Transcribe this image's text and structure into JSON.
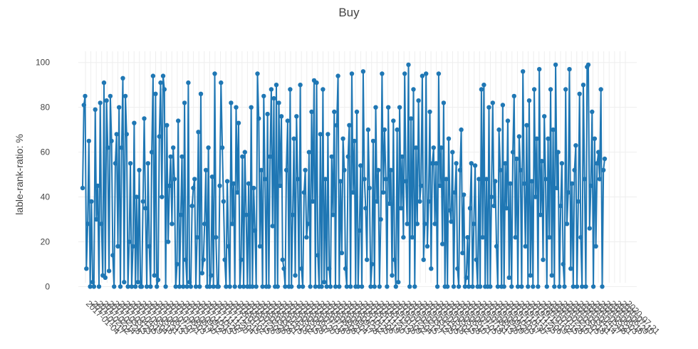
{
  "chart_data": {
    "type": "line",
    "title": "Buy",
    "xlabel": "",
    "ylabel": "lable-rank-ratio: %",
    "ylim": [
      -4,
      105
    ],
    "y_ticks": [
      0,
      20,
      40,
      60,
      80,
      100
    ],
    "grid": true,
    "legend": "none",
    "color": "#1f77b4",
    "x_tick_labels": [
      "2017-01-04",
      "2017-01-17",
      "2017-02-02",
      "2017-02-14",
      "2017-02-28",
      "2017-03-13",
      "2017-03-23",
      "2017-04-05",
      "2017-04-19",
      "2017-05-04",
      "2017-05-16",
      "2017-05-31",
      "2017-06-13",
      "2017-06-23",
      "2017-07-07",
      "2017-07-21",
      "2017-08-03",
      "2017-08-17",
      "2017-08-30",
      "2017-09-12",
      "2017-09-26",
      "2017-10-13",
      "2017-10-25",
      "2017-11-07",
      "2017-11-20",
      "2017-12-04",
      "2017-12-15",
      "2018-01-02",
      "2018-01-15",
      "2018-01-26",
      "2018-02-09",
      "2018-02-26",
      "2018-03-08",
      "2018-03-21",
      "2018-04-05",
      "2018-04-18",
      "2018-05-02",
      "2018-05-15",
      "2018-05-28",
      "2018-06-07",
      "2018-06-20",
      "2018-07-03",
      "2018-07-16",
      "2018-07-26",
      "2018-08-08",
      "2018-08-21",
      "2018-09-04",
      "2018-09-17",
      "2018-09-28",
      "2018-10-12",
      "2018-10-25",
      "2018-11-06",
      "2018-11-19",
      "2018-11-30",
      "2018-12-13",
      "2018-12-26",
      "2019-01-09",
      "2019-01-22",
      "2019-02-04",
      "2019-02-15",
      "2019-02-27",
      "2019-03-12",
      "2019-03-25",
      "2019-04-05",
      "2019-04-18",
      "2019-05-02",
      "2019-05-15",
      "2019-05-28",
      "2019-06-10",
      "2019-06-21",
      "2019-07-05",
      "2019-07-18",
      "2019-07-31",
      "2019-08-13",
      "2019-08-26",
      "2019-09-09",
      "2019-09-20",
      "2019-10-03",
      "2019-10-17",
      "2019-10-30",
      "2019-11-12",
      "2019-11-25",
      "2019-12-06",
      "2019-12-19",
      "2020-01-02",
      "2020-01-15",
      "2020-01-28",
      "2020-02-10",
      "2020-02-21",
      "2020-03-05",
      "2020-03-18",
      "2020-03-31",
      "2020-04-14",
      "2020-04-27",
      "2020-05-08",
      "2020-05-21",
      "2020-06-03",
      "2020-06-16",
      "2020-06-29",
      "2020-07-10",
      "2020-07-21"
    ],
    "values": [
      44,
      81,
      85,
      8,
      28,
      65,
      0,
      38,
      2,
      0,
      79,
      30,
      45,
      0,
      82,
      28,
      5,
      91,
      4,
      83,
      62,
      7,
      85,
      65,
      14,
      0,
      55,
      68,
      18,
      80,
      0,
      62,
      93,
      2,
      85,
      68,
      0,
      20,
      55,
      0,
      18,
      73,
      0,
      40,
      2,
      52,
      0,
      0,
      38,
      75,
      35,
      0,
      55,
      18,
      0,
      60,
      94,
      5,
      86,
      0,
      3,
      67,
      91,
      40,
      94,
      88,
      0,
      72,
      20,
      45,
      58,
      28,
      62,
      48,
      0,
      10,
      74,
      0,
      32,
      58,
      0,
      82,
      12,
      0,
      91,
      2,
      0,
      36,
      44,
      48,
      0,
      22,
      69,
      0,
      86,
      6,
      12,
      28,
      52,
      0,
      62,
      0,
      5,
      49,
      0,
      95,
      22,
      0,
      0,
      45,
      91,
      62,
      38,
      12,
      0,
      47,
      18,
      0,
      82,
      28,
      46,
      0,
      80,
      42,
      73,
      0,
      12,
      58,
      0,
      60,
      32,
      0,
      46,
      0,
      80,
      0,
      44,
      25,
      0,
      95,
      75,
      18,
      52,
      0,
      85,
      48,
      0,
      77,
      0,
      58,
      88,
      27,
      84,
      0,
      90,
      0,
      82,
      45,
      76,
      12,
      8,
      0,
      52,
      74,
      0,
      88,
      0,
      32,
      66,
      5,
      76,
      48,
      0,
      90,
      8,
      0,
      42,
      52,
      22,
      28,
      60,
      0,
      78,
      38,
      92,
      0,
      91,
      14,
      0,
      68,
      0,
      88,
      2,
      48,
      0,
      68,
      8,
      0,
      58,
      32,
      78,
      0,
      72,
      94,
      0,
      47,
      15,
      66,
      52,
      8,
      0,
      58,
      72,
      0,
      95,
      42,
      65,
      0,
      78,
      0,
      25,
      54,
      0,
      96,
      48,
      35,
      12,
      70,
      44,
      0,
      10,
      65,
      0,
      80,
      38,
      52,
      0,
      30,
      95,
      42,
      70,
      48,
      0,
      80,
      37,
      52,
      5,
      74,
      12,
      0,
      70,
      2,
      80,
      35,
      58,
      22,
      95,
      47,
      28,
      99,
      0,
      75,
      22,
      88,
      0,
      62,
      28,
      83,
      38,
      45,
      94,
      12,
      28,
      95,
      18,
      38,
      78,
      8,
      55,
      62,
      28,
      55,
      0,
      95,
      45,
      62,
      19,
      82,
      0,
      48,
      0,
      66,
      34,
      29,
      60,
      0,
      42,
      55,
      8,
      0,
      52,
      70,
      15,
      41,
      0,
      4,
      22,
      0,
      35,
      55,
      0,
      28,
      54,
      12,
      0,
      48,
      0,
      88,
      22,
      90,
      0,
      48,
      0,
      80,
      0,
      40,
      82,
      36,
      47,
      18,
      0,
      70,
      52,
      0,
      81,
      0,
      55,
      35,
      74,
      4,
      46,
      0,
      60,
      85,
      22,
      57,
      0,
      67,
      52,
      0,
      96,
      46,
      18,
      72,
      0,
      83,
      5,
      47,
      0,
      88,
      40,
      66,
      0,
      97,
      32,
      56,
      12,
      76,
      48,
      0,
      66,
      22,
      88,
      5,
      70,
      0,
      99,
      44,
      60,
      0,
      36,
      55,
      10,
      0,
      88,
      28,
      42,
      97,
      8,
      46,
      0,
      52,
      63,
      0,
      38,
      86,
      22,
      0,
      90,
      48,
      0,
      98,
      99,
      26,
      45,
      78,
      0,
      66,
      18,
      55,
      60,
      48,
      88,
      0,
      52,
      57
    ]
  }
}
